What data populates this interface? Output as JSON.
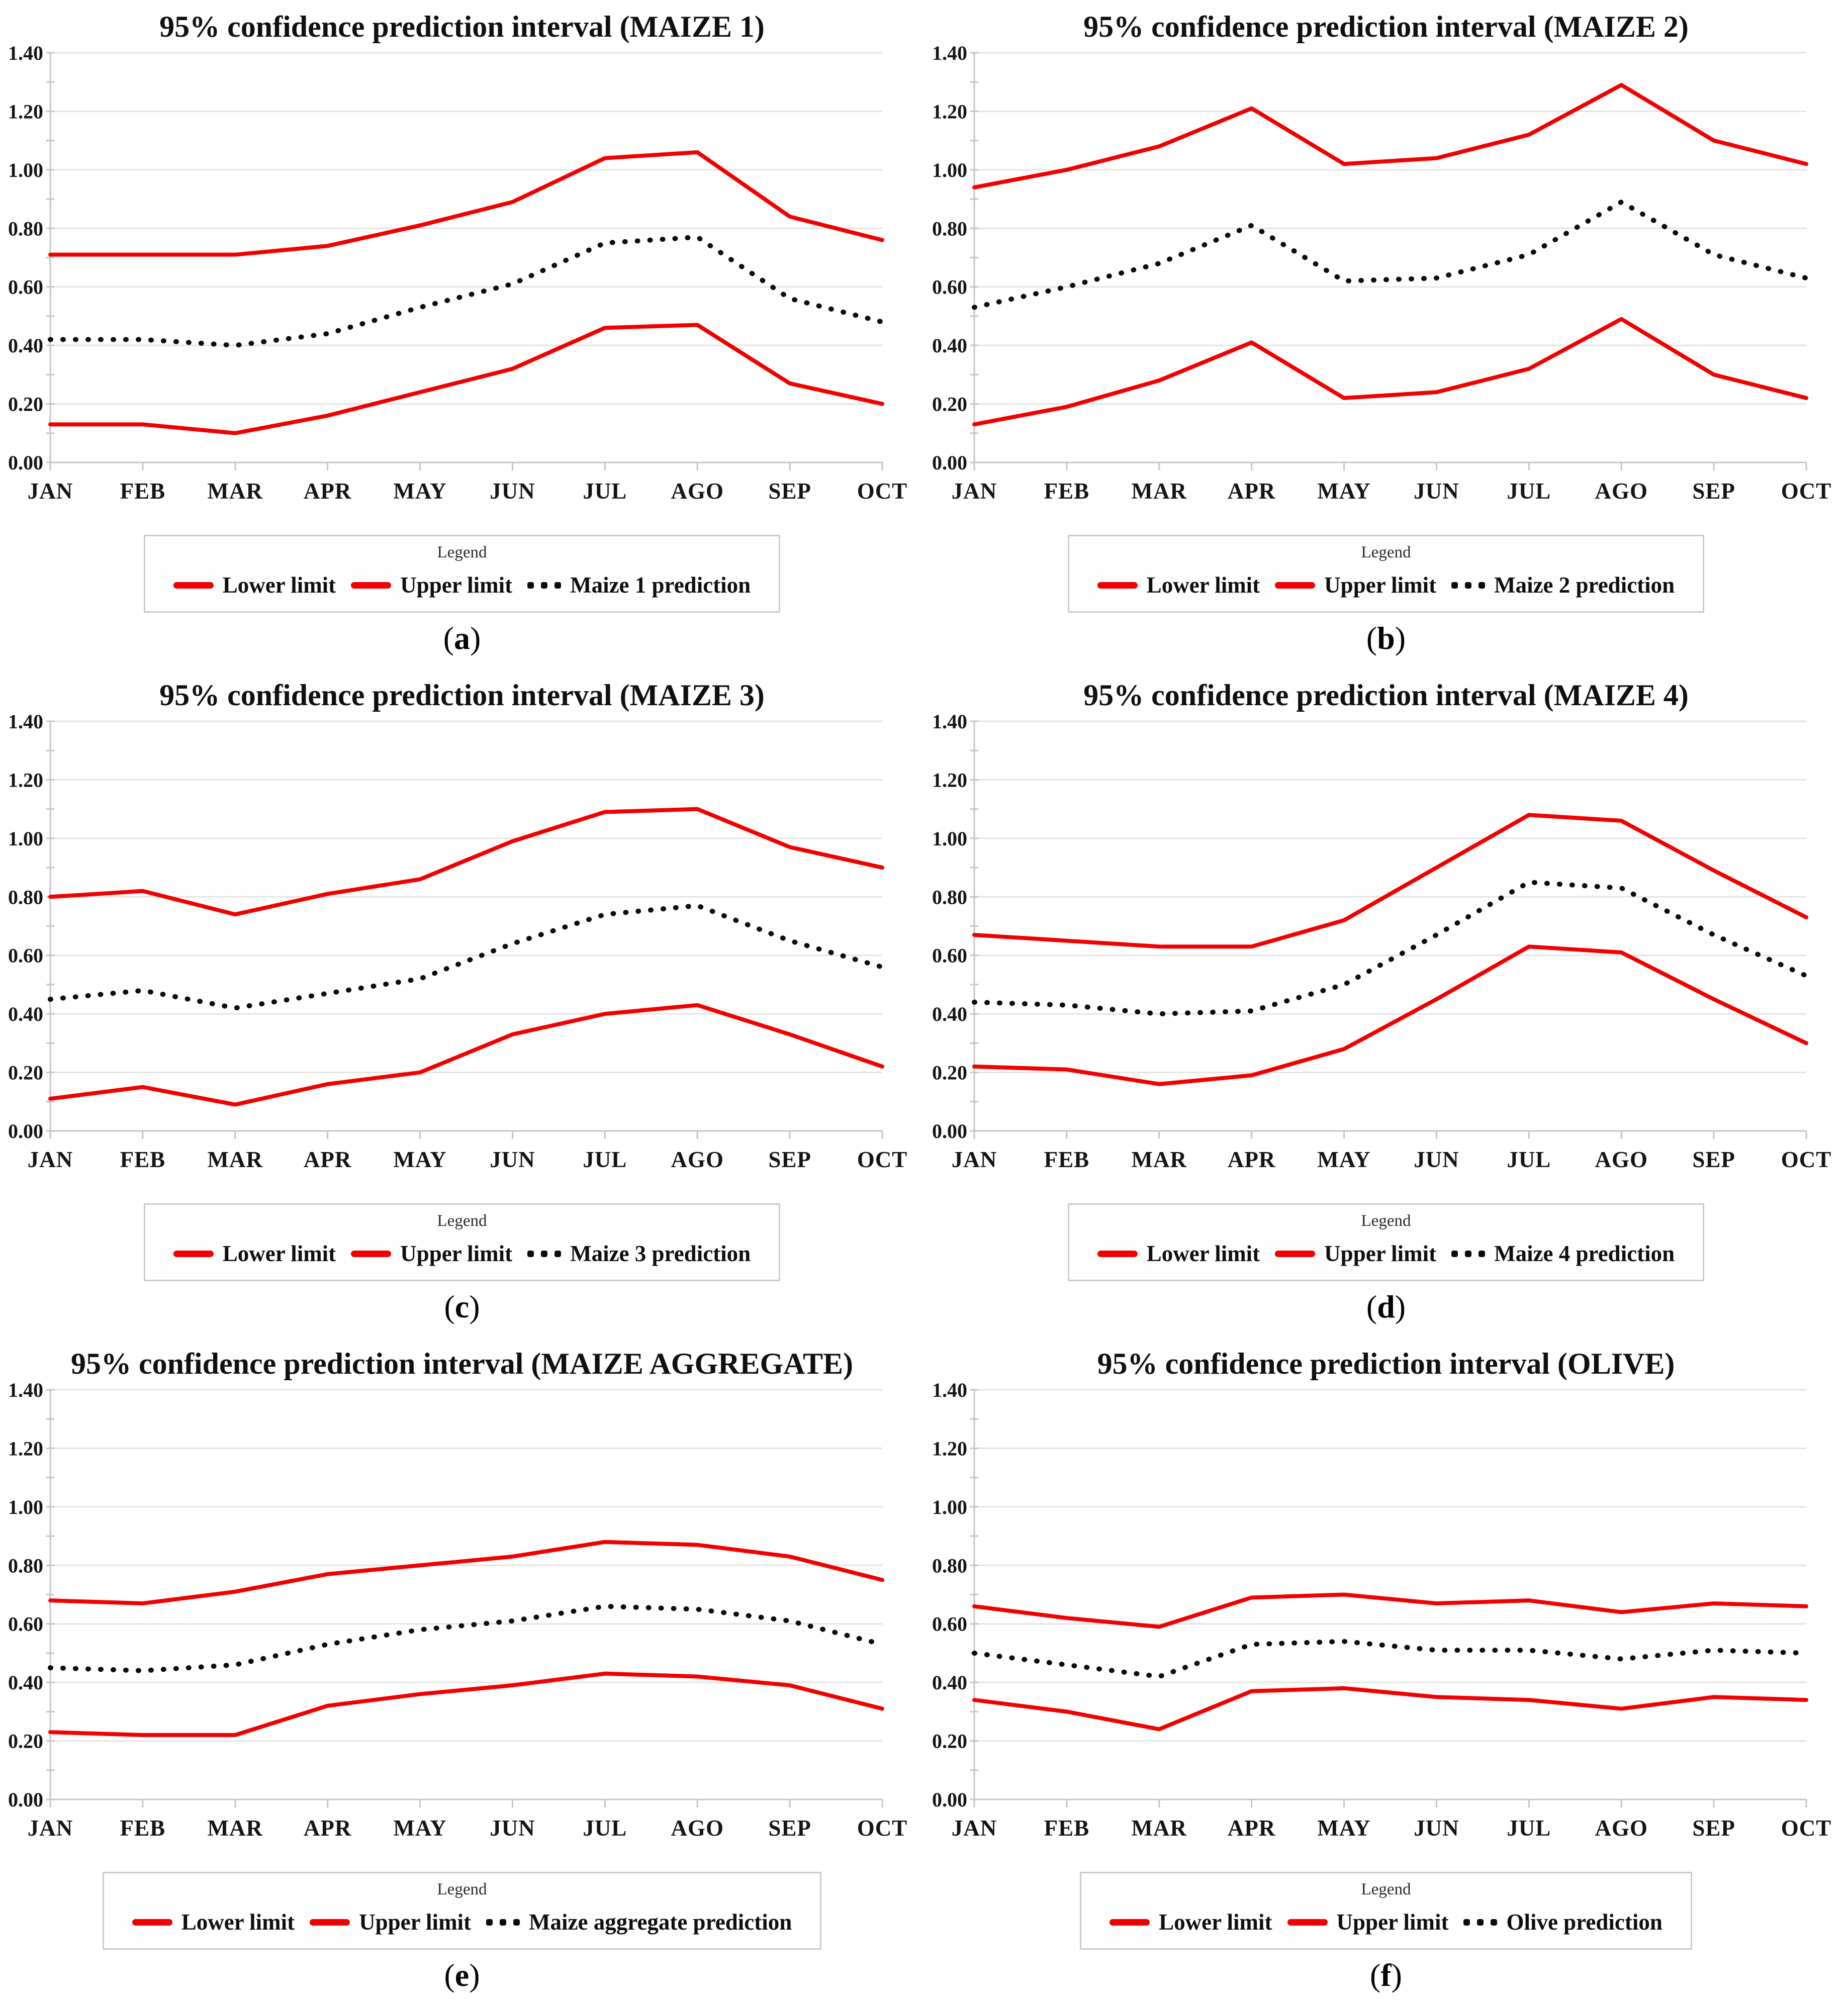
{
  "page": {
    "background": "#ffffff"
  },
  "colors": {
    "line_red": "#f20000",
    "prediction_black": "#0c0c0c",
    "grid": "#e4e4e4",
    "axis": "#c6c6c6",
    "text": "#151515"
  },
  "chart_data": [
    {
      "id": "a",
      "type": "line",
      "title": "95% confidence prediction interval (MAIZE 1)",
      "panel_label": "(a)",
      "legend_title": "Legend",
      "categories": [
        "JAN",
        "FEB",
        "MAR",
        "APR",
        "MAY",
        "JUN",
        "JUL",
        "AGO",
        "SEP",
        "OCT"
      ],
      "ylim": [
        0,
        1.4
      ],
      "ytick_labels": [
        "0.00",
        "0.20",
        "0.40",
        "0.60",
        "0.80",
        "1.00",
        "1.20",
        "1.40"
      ],
      "grid": true,
      "legend_position": "bottom",
      "series": [
        {
          "name": "Lower limit",
          "style": "solid-red",
          "values": [
            0.13,
            0.13,
            0.1,
            0.16,
            0.24,
            0.32,
            0.46,
            0.47,
            0.27,
            0.2
          ]
        },
        {
          "name": "Upper limit",
          "style": "solid-red",
          "values": [
            0.71,
            0.71,
            0.71,
            0.74,
            0.81,
            0.89,
            1.04,
            1.06,
            0.84,
            0.76
          ]
        },
        {
          "name": "Maize 1 prediction",
          "style": "dotted-black",
          "values": [
            0.42,
            0.42,
            0.4,
            0.44,
            0.53,
            0.61,
            0.75,
            0.77,
            0.56,
            0.48
          ]
        }
      ]
    },
    {
      "id": "b",
      "type": "line",
      "title": "95% confidence prediction interval (MAIZE 2)",
      "panel_label": "(b)",
      "legend_title": "Legend",
      "categories": [
        "JAN",
        "FEB",
        "MAR",
        "APR",
        "MAY",
        "JUN",
        "JUL",
        "AGO",
        "SEP",
        "OCT"
      ],
      "ylim": [
        0,
        1.4
      ],
      "ytick_labels": [
        "0.00",
        "0.20",
        "0.40",
        "0.60",
        "0.80",
        "1.00",
        "1.20",
        "1.40"
      ],
      "grid": true,
      "legend_position": "bottom",
      "series": [
        {
          "name": "Lower limit",
          "style": "solid-red",
          "values": [
            0.13,
            0.19,
            0.28,
            0.41,
            0.22,
            0.24,
            0.32,
            0.49,
            0.3,
            0.22
          ]
        },
        {
          "name": "Upper limit",
          "style": "solid-red",
          "values": [
            0.94,
            1.0,
            1.08,
            1.21,
            1.02,
            1.04,
            1.12,
            1.29,
            1.1,
            1.02
          ]
        },
        {
          "name": "Maize 2 prediction",
          "style": "dotted-black",
          "values": [
            0.53,
            0.6,
            0.68,
            0.81,
            0.62,
            0.63,
            0.71,
            0.89,
            0.71,
            0.63
          ]
        }
      ]
    },
    {
      "id": "c",
      "type": "line",
      "title": "95% confidence prediction interval (MAIZE 3)",
      "panel_label": "(c)",
      "legend_title": "Legend",
      "categories": [
        "JAN",
        "FEB",
        "MAR",
        "APR",
        "MAY",
        "JUN",
        "JUL",
        "AGO",
        "SEP",
        "OCT"
      ],
      "ylim": [
        0,
        1.4
      ],
      "ytick_labels": [
        "0.00",
        "0.20",
        "0.40",
        "0.60",
        "0.80",
        "1.00",
        "1.20",
        "1.40"
      ],
      "grid": true,
      "legend_position": "bottom",
      "series": [
        {
          "name": "Lower limit",
          "style": "solid-red",
          "values": [
            0.11,
            0.15,
            0.09,
            0.16,
            0.2,
            0.33,
            0.4,
            0.43,
            0.33,
            0.22
          ]
        },
        {
          "name": "Upper limit",
          "style": "solid-red",
          "values": [
            0.8,
            0.82,
            0.74,
            0.81,
            0.86,
            0.99,
            1.09,
            1.1,
            0.97,
            0.9
          ]
        },
        {
          "name": "Maize 3 prediction",
          "style": "dotted-black",
          "values": [
            0.45,
            0.48,
            0.42,
            0.47,
            0.52,
            0.64,
            0.74,
            0.77,
            0.65,
            0.56
          ]
        }
      ]
    },
    {
      "id": "d",
      "type": "line",
      "title": "95% confidence prediction interval (MAIZE 4)",
      "panel_label": "(d)",
      "legend_title": "Legend",
      "categories": [
        "JAN",
        "FEB",
        "MAR",
        "APR",
        "MAY",
        "JUN",
        "JUL",
        "AGO",
        "SEP",
        "OCT"
      ],
      "ylim": [
        0,
        1.4
      ],
      "ytick_labels": [
        "0.00",
        "0.20",
        "0.40",
        "0.60",
        "0.80",
        "1.00",
        "1.20",
        "1.40"
      ],
      "grid": true,
      "legend_position": "bottom",
      "series": [
        {
          "name": "Lower limit",
          "style": "solid-red",
          "values": [
            0.22,
            0.21,
            0.16,
            0.19,
            0.28,
            0.45,
            0.63,
            0.61,
            0.45,
            0.3
          ]
        },
        {
          "name": "Upper limit",
          "style": "solid-red",
          "values": [
            0.67,
            0.65,
            0.63,
            0.63,
            0.72,
            0.9,
            1.08,
            1.06,
            0.89,
            0.73
          ]
        },
        {
          "name": "Maize 4 prediction",
          "style": "dotted-black",
          "values": [
            0.44,
            0.43,
            0.4,
            0.41,
            0.5,
            0.67,
            0.85,
            0.83,
            0.67,
            0.53
          ]
        }
      ]
    },
    {
      "id": "e",
      "type": "line",
      "title": "95% confidence prediction interval (MAIZE AGGREGATE)",
      "panel_label": "(e)",
      "legend_title": "Legend",
      "categories": [
        "JAN",
        "FEB",
        "MAR",
        "APR",
        "MAY",
        "JUN",
        "JUL",
        "AGO",
        "SEP",
        "OCT"
      ],
      "ylim": [
        0,
        1.4
      ],
      "ytick_labels": [
        "0.00",
        "0.20",
        "0.40",
        "0.60",
        "0.80",
        "1.00",
        "1.20",
        "1.40"
      ],
      "grid": true,
      "legend_position": "bottom",
      "series": [
        {
          "name": "Lower limit",
          "style": "solid-red",
          "values": [
            0.23,
            0.22,
            0.22,
            0.32,
            0.36,
            0.39,
            0.43,
            0.42,
            0.39,
            0.31
          ]
        },
        {
          "name": "Upper limit",
          "style": "solid-red",
          "values": [
            0.68,
            0.67,
            0.71,
            0.77,
            0.8,
            0.83,
            0.88,
            0.87,
            0.83,
            0.75
          ]
        },
        {
          "name": "Maize aggregate prediction",
          "style": "dotted-black",
          "values": [
            0.45,
            0.44,
            0.46,
            0.53,
            0.58,
            0.61,
            0.66,
            0.65,
            0.61,
            0.53
          ]
        }
      ]
    },
    {
      "id": "f",
      "type": "line",
      "title": "95% confidence prediction interval (OLIVE)",
      "panel_label": "(f)",
      "legend_title": "Legend",
      "categories": [
        "JAN",
        "FEB",
        "MAR",
        "APR",
        "MAY",
        "JUN",
        "JUL",
        "AGO",
        "SEP",
        "OCT"
      ],
      "ylim": [
        0,
        1.4
      ],
      "ytick_labels": [
        "0.00",
        "0.20",
        "0.40",
        "0.60",
        "0.80",
        "1.00",
        "1.20",
        "1.40"
      ],
      "grid": true,
      "legend_position": "bottom",
      "series": [
        {
          "name": "Lower limit",
          "style": "solid-red",
          "values": [
            0.34,
            0.3,
            0.24,
            0.37,
            0.38,
            0.35,
            0.34,
            0.31,
            0.35,
            0.34
          ]
        },
        {
          "name": "Upper limit",
          "style": "solid-red",
          "values": [
            0.66,
            0.62,
            0.59,
            0.69,
            0.7,
            0.67,
            0.68,
            0.64,
            0.67,
            0.66
          ]
        },
        {
          "name": "Olive prediction",
          "style": "dotted-black",
          "values": [
            0.5,
            0.46,
            0.42,
            0.53,
            0.54,
            0.51,
            0.51,
            0.48,
            0.51,
            0.5
          ]
        }
      ]
    }
  ]
}
